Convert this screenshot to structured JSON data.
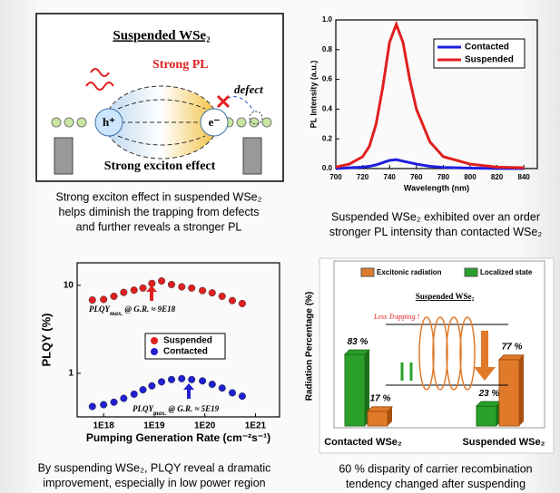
{
  "diagram": {
    "title": "Suspended WSe₂",
    "pl": "Strong PL",
    "defect": "defect",
    "hole": "h⁺",
    "electron": "e⁻",
    "effect": "Strong exciton effect"
  },
  "captions": [
    [
      "Strong exciton effect in suspended WSe₂",
      "helps diminish the trapping from defects",
      "and further reveals a stronger PL"
    ],
    [
      "Suspended WSe₂ exhibited over an order",
      "stronger PL intensity than contacted WSe₂"
    ],
    [
      "By suspending WSe₂, PLQY reveal a dramatic",
      "improvement, especially in low power region"
    ],
    [
      "60 % disparity of  carrier recombination",
      "tendency changed after suspending"
    ]
  ],
  "chart_data": [
    {
      "type": "line",
      "ylabel": "PL Intensity (a.u.)",
      "xlabel": "Wavelength (nm)",
      "x": [
        700,
        710,
        720,
        725,
        730,
        735,
        740,
        745,
        750,
        755,
        760,
        770,
        780,
        800,
        820,
        840
      ],
      "series": [
        {
          "name": "Contacted",
          "color": "#1f1fe0",
          "values": [
            0,
            0.005,
            0.01,
            0.015,
            0.025,
            0.04,
            0.055,
            0.06,
            0.05,
            0.04,
            0.03,
            0.015,
            0.008,
            0.003,
            0.001,
            0
          ]
        },
        {
          "name": "Suspended",
          "color": "#e01f1f",
          "values": [
            0.01,
            0.03,
            0.08,
            0.15,
            0.3,
            0.55,
            0.85,
            0.97,
            0.85,
            0.6,
            0.4,
            0.18,
            0.08,
            0.03,
            0.01,
            0.005
          ]
        }
      ],
      "xlim": [
        700,
        850
      ],
      "xticks": [
        700,
        720,
        740,
        760,
        780,
        800,
        820,
        840
      ],
      "ylim": [
        0,
        1
      ],
      "yticks": [
        {
          "value": 0,
          "label": "0.0"
        },
        0.2,
        0.4,
        0.6,
        0.8,
        {
          "value": 1,
          "label": "1.0"
        }
      ],
      "legend": "upper right"
    },
    {
      "type": "scatter",
      "ylabel": "PLQY (%)",
      "xlabel": "Pumping Generation Rate (cm⁻²s⁻¹)",
      "log_x": true,
      "log_y": true,
      "x": [
        6e+17,
        1e+18,
        1.6e+18,
        2.5e+18,
        4e+18,
        6e+18,
        9e+18,
        1.4e+19,
        2.2e+19,
        3.5e+19,
        5.5e+19,
        9e+19,
        1.4e+20,
        2.2e+20,
        3.5e+20,
        5.5e+20
      ],
      "series": [
        {
          "name": "Suspended",
          "color": "#e02020",
          "values": [
            6.8,
            6.9,
            7.5,
            8.3,
            8.8,
            9.3,
            10.5,
            11.2,
            10.2,
            9.6,
            9.3,
            8.7,
            8.2,
            7.5,
            6.7,
            6.2
          ]
        },
        {
          "name": "Contacted",
          "color": "#2020d0",
          "values": [
            0.42,
            0.44,
            0.47,
            0.52,
            0.58,
            0.65,
            0.72,
            0.8,
            0.85,
            0.87,
            0.85,
            0.82,
            0.75,
            0.68,
            0.6,
            0.55
          ]
        }
      ],
      "annotations": [
        {
          "main": "PLQY",
          "sub": "max.",
          "rest": " @ G.R. ≈ 9E18"
        },
        {
          "main": "PLQY",
          "sub": "max.",
          "rest": " @ G.R. ≈ 5E19"
        }
      ],
      "xlim": [
        3e+17,
        3e+21
      ],
      "xticks": [
        {
          "value": 1e+18,
          "label": "1E18"
        },
        {
          "value": 1e+19,
          "label": "1E19"
        },
        {
          "value": 1e+20,
          "label": "1E20"
        },
        {
          "value": 1e+21,
          "label": "1E21"
        }
      ],
      "ylim": [
        0.32,
        18
      ],
      "yticks": [
        1,
        10
      ],
      "legend": "center"
    },
    {
      "type": "bar",
      "ylabel": "Radiation Percentage (%)",
      "categories": [
        "Contacted WSe₂",
        "Suspended WSe₂"
      ],
      "series": [
        {
          "name": "Excitonic radiation",
          "color": "#e07a2a",
          "values": [
            17,
            77
          ],
          "value_labels": [
            "17 %",
            "77 %"
          ]
        },
        {
          "name": "Localized state",
          "color": "#2aa02a",
          "values": [
            83,
            23
          ],
          "value_labels": [
            "83 %",
            "23 %"
          ]
        }
      ],
      "inset": {
        "title": "Suspended WSe₂",
        "note": "Less Trapping !"
      },
      "ylim": [
        0,
        100
      ],
      "legend": "top"
    }
  ]
}
